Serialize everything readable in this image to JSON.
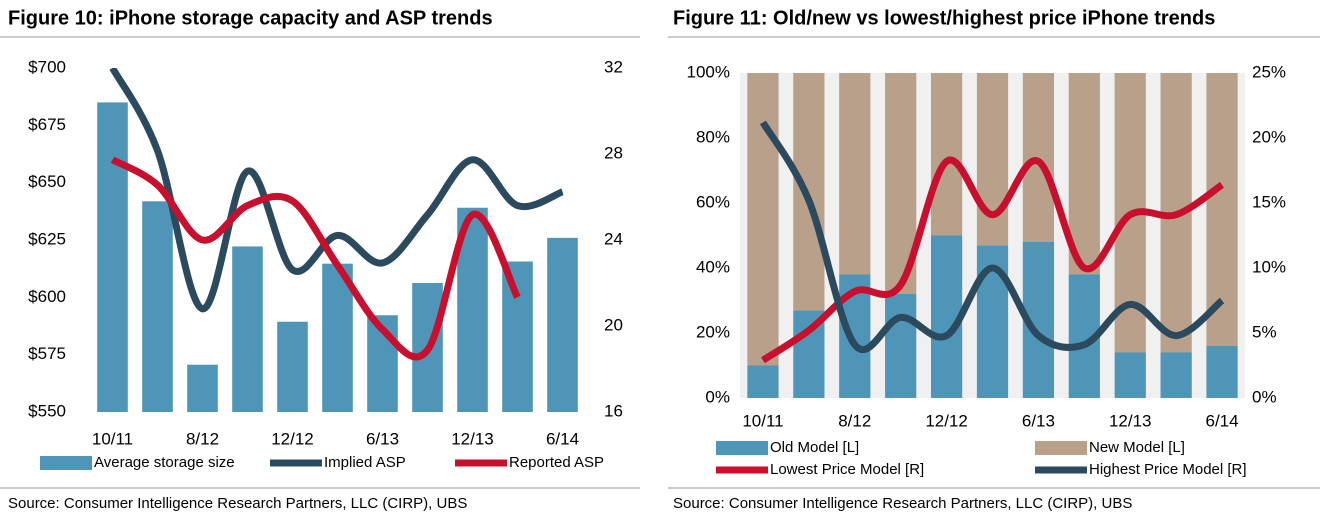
{
  "chart_data": [
    {
      "type": "combo",
      "title": "Figure 10: iPhone storage capacity and ASP trends",
      "source": "Source:  Consumer Intelligence Research Partners, LLC (CIRP), UBS",
      "categories": [
        "10/11",
        null,
        "8/12",
        null,
        "12/12",
        null,
        "6/13",
        null,
        "12/13",
        null,
        "6/14"
      ],
      "ylim": [
        550,
        700
      ],
      "yticks": [
        {
          "value": 550,
          "label": "$550"
        },
        {
          "value": 575,
          "label": "$575"
        },
        {
          "value": 600,
          "label": "$600"
        },
        {
          "value": 625,
          "label": "$625"
        },
        {
          "value": 650,
          "label": "$650"
        },
        {
          "value": 675,
          "label": "$675"
        },
        {
          "value": 700,
          "label": "$700"
        }
      ],
      "y2lim": [
        16,
        32
      ],
      "y2ticks": [
        16,
        20,
        24,
        28,
        32
      ],
      "series": [
        {
          "name": "Average storage size",
          "type": "bar",
          "axis": "y2",
          "color": "#4f95b8",
          "values": [
            30.4,
            25.8,
            18.2,
            23.7,
            20.2,
            22.9,
            20.5,
            22.0,
            25.5,
            23.0,
            24.1
          ]
        },
        {
          "name": "Implied ASP",
          "type": "line",
          "color": "#2c4a5e",
          "values": [
            700,
            664,
            595,
            655,
            612,
            627,
            615,
            636,
            660,
            640,
            646
          ]
        },
        {
          "name": "Reported ASP",
          "type": "line",
          "color": "#c8102e",
          "values": [
            660,
            649,
            625,
            640,
            642,
            614,
            586,
            577,
            636,
            600,
            null
          ]
        }
      ]
    },
    {
      "type": "combo",
      "title": "Figure 11: Old/new vs lowest/highest price iPhone trends",
      "source": "Source:  Consumer Intelligence Research Partners, LLC (CIRP), UBS",
      "categories": [
        "10/11",
        null,
        "8/12",
        null,
        "12/12",
        null,
        "6/13",
        null,
        "12/13",
        null,
        "6/14"
      ],
      "stacked": true,
      "ylim": [
        0,
        100
      ],
      "yticks": [
        {
          "value": 0,
          "label": "0%"
        },
        {
          "value": 20,
          "label": "20%"
        },
        {
          "value": 40,
          "label": "40%"
        },
        {
          "value": 60,
          "label": "60%"
        },
        {
          "value": 80,
          "label": "80%"
        },
        {
          "value": 100,
          "label": "100%"
        }
      ],
      "y2lim": [
        0,
        25
      ],
      "y2ticks": [
        {
          "value": 0,
          "label": "0%"
        },
        {
          "value": 5,
          "label": "5%"
        },
        {
          "value": 10,
          "label": "10%"
        },
        {
          "value": 15,
          "label": "15%"
        },
        {
          "value": 20,
          "label": "20%"
        },
        {
          "value": 25,
          "label": "25%"
        }
      ],
      "series": [
        {
          "name": "Old Model [L]",
          "type": "bar",
          "color": "#4f95b8",
          "values": [
            10,
            27,
            38,
            32,
            50,
            47,
            48,
            38,
            14,
            14,
            16
          ]
        },
        {
          "name": "New Model [L]",
          "type": "bar",
          "color": "#b8a08a",
          "values": [
            90,
            73,
            62,
            68,
            50,
            53,
            52,
            62,
            86,
            86,
            84
          ]
        },
        {
          "name": "Lowest Price Model [R]",
          "type": "line",
          "axis": "y2",
          "color": "#c8102e",
          "values": [
            2.9,
            5.2,
            8.2,
            8.7,
            18.2,
            14.1,
            18.2,
            10.0,
            14.1,
            14.1,
            16.4
          ]
        },
        {
          "name": "Highest Price Model [R]",
          "type": "line",
          "axis": "y2",
          "color": "#2c4a5e",
          "values": [
            21.2,
            15.2,
            4.1,
            6.2,
            4.8,
            10.0,
            4.8,
            4.1,
            7.2,
            4.8,
            7.5
          ]
        }
      ]
    }
  ]
}
